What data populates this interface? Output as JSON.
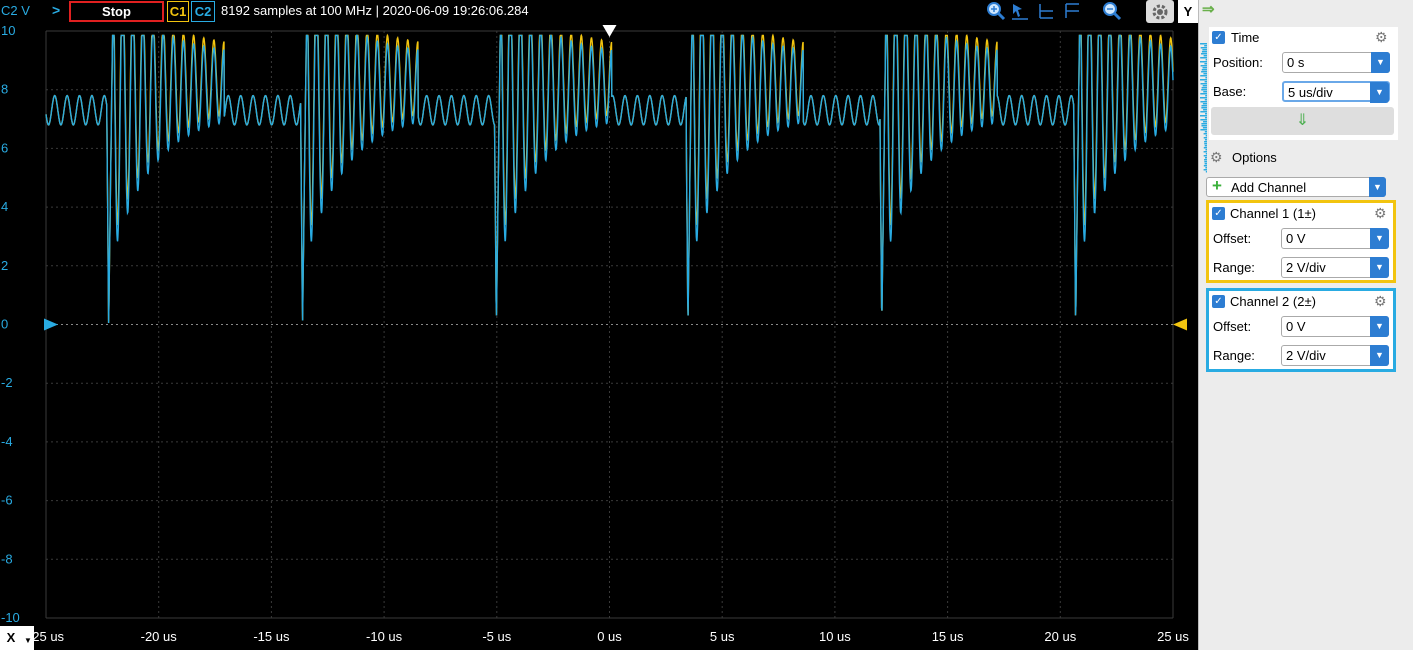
{
  "toolbar": {
    "y_unit_label": "C2 V",
    "run_arrow": ">",
    "stop_label": "Stop",
    "c1_label": "C1",
    "c2_label": "C2",
    "status": "8192 samples at 100 MHz | 2020-06-09 19:26:06.284",
    "y_axis_button": "Y"
  },
  "bottom": {
    "x_axis_button": "X"
  },
  "colors": {
    "channel1": "#f2c40f",
    "channel2": "#29abe2",
    "background": "#000000",
    "grid": "#3a3a3a"
  },
  "panel": {
    "time": {
      "title": "Time",
      "position_label": "Position:",
      "position_value": "0 s",
      "base_label": "Base:",
      "base_value": "5 us/div"
    },
    "options_label": "Options",
    "add_channel_label": "Add Channel",
    "channel1": {
      "title": "Channel 1 (1±)",
      "offset_label": "Offset:",
      "offset_value": "0 V",
      "range_label": "Range:",
      "range_value": "2 V/div"
    },
    "channel2": {
      "title": "Channel 2 (2±)",
      "offset_label": "Offset:",
      "offset_value": "0 V",
      "range_label": "Range:",
      "range_value": "2 V/div"
    }
  },
  "chart_data": {
    "type": "line",
    "xlabel": "",
    "ylabel": "C2 V",
    "x_tick_labels": [
      "-25 us",
      "-20 us",
      "-15 us",
      "-10 us",
      "-5 us",
      "0 us",
      "5 us",
      "10 us",
      "15 us",
      "20 us",
      "25 us"
    ],
    "y_tick_labels": [
      "10",
      "8",
      "6",
      "4",
      "2",
      "0",
      "-2",
      "-4",
      "-6",
      "-8",
      "-10"
    ],
    "xlim": [
      -25,
      25
    ],
    "ylim": [
      -10,
      10
    ],
    "grid": true,
    "burst_period_us": 8.6,
    "burst_starts_us": [
      -22.3,
      -13.7,
      -5.1,
      3.4,
      12.0,
      20.6
    ],
    "idle_ripple": {
      "center_v": 7.3,
      "amplitude_v": 0.5,
      "period_us": 0.55
    },
    "series": [
      {
        "name": "C1",
        "color": "#f2c40f",
        "burst_min_v": 0.0,
        "burst_max_v": 9.8
      },
      {
        "name": "C2",
        "color": "#29abe2",
        "burst_min_v": 0.0,
        "burst_max_v": 9.8
      }
    ]
  }
}
